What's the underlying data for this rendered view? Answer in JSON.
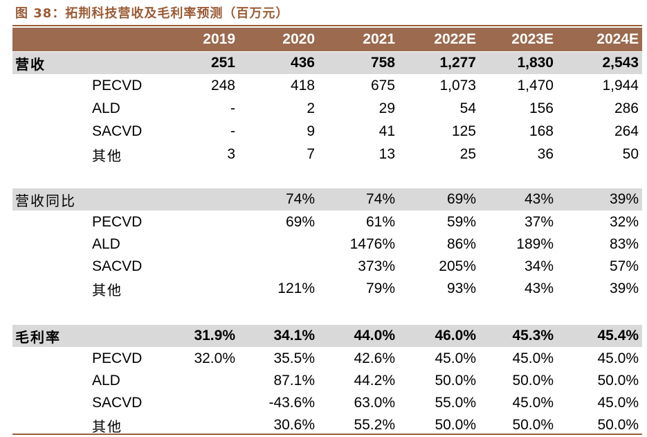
{
  "title": "图 38：拓荆科技营收及毛利率预测（百万元）",
  "colors": {
    "accent": "#9a5b35",
    "header_bg": "#9b6a4f",
    "shade": "#d9d9d9"
  },
  "header": {
    "years": [
      "2019",
      "2020",
      "2021",
      "2022E",
      "2023E",
      "2024E"
    ]
  },
  "revenue": {
    "label": "营收",
    "total": [
      "251",
      "436",
      "758",
      "1,277",
      "1,830",
      "2,543"
    ],
    "rows": [
      {
        "label": "PECVD",
        "values": [
          "248",
          "418",
          "675",
          "1,073",
          "1,470",
          "1,944"
        ]
      },
      {
        "label": "ALD",
        "values": [
          "-",
          "2",
          "29",
          "54",
          "156",
          "286"
        ]
      },
      {
        "label": "SACVD",
        "values": [
          "-",
          "9",
          "41",
          "125",
          "168",
          "264"
        ]
      },
      {
        "label": "其他",
        "values": [
          "3",
          "7",
          "13",
          "25",
          "36",
          "50"
        ]
      }
    ]
  },
  "growth": {
    "label": "营收同比",
    "total": [
      "",
      "74%",
      "74%",
      "69%",
      "43%",
      "39%"
    ],
    "rows": [
      {
        "label": "PECVD",
        "values": [
          "",
          "69%",
          "61%",
          "59%",
          "37%",
          "32%"
        ]
      },
      {
        "label": "ALD",
        "values": [
          "",
          "",
          "1476%",
          "86%",
          "189%",
          "83%"
        ]
      },
      {
        "label": "SACVD",
        "values": [
          "",
          "",
          "373%",
          "205%",
          "34%",
          "57%"
        ]
      },
      {
        "label": "其他",
        "values": [
          "",
          "121%",
          "79%",
          "93%",
          "43%",
          "39%"
        ]
      }
    ]
  },
  "margin": {
    "label": "毛利率",
    "total": [
      "31.9%",
      "34.1%",
      "44.0%",
      "46.0%",
      "45.3%",
      "45.4%"
    ],
    "rows": [
      {
        "label": "PECVD",
        "values": [
          "32.0%",
          "35.5%",
          "42.6%",
          "45.0%",
          "45.0%",
          "45.0%"
        ]
      },
      {
        "label": "ALD",
        "values": [
          "",
          "87.1%",
          "44.2%",
          "50.0%",
          "50.0%",
          "50.0%"
        ]
      },
      {
        "label": "SACVD",
        "values": [
          "",
          "-43.6%",
          "63.0%",
          "55.0%",
          "45.0%",
          "45.0%"
        ]
      },
      {
        "label": "其他",
        "values": [
          "",
          "30.6%",
          "55.2%",
          "50.0%",
          "50.0%",
          "50.0%"
        ]
      }
    ]
  }
}
